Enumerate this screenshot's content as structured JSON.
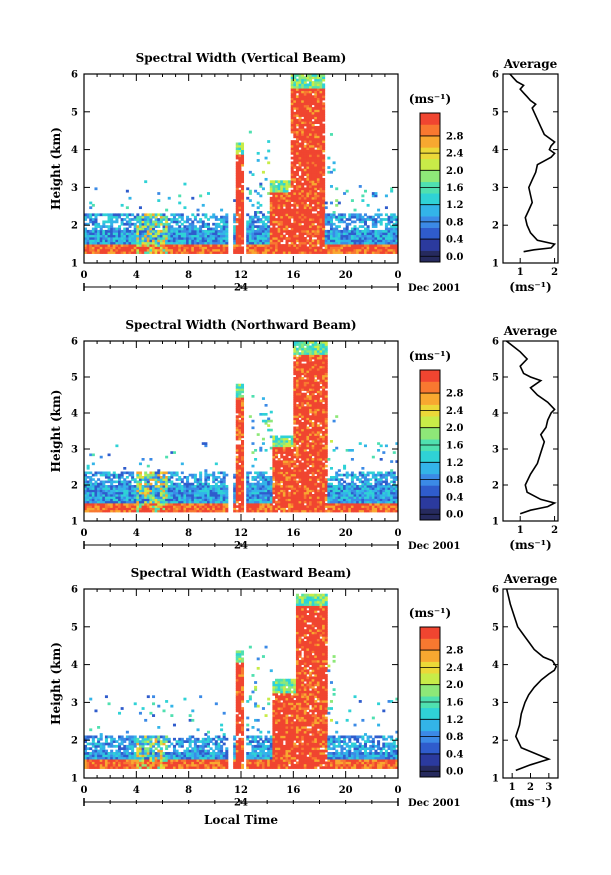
{
  "chart_data": [
    {
      "type": "heatmap",
      "title": "Spectral Width (Vertical Beam)",
      "ylabel": "Height (km)",
      "ylim": [
        1,
        6
      ],
      "yticks": [
        "1",
        "2",
        "3",
        "4",
        "5",
        "6"
      ],
      "xlim": [
        0,
        24
      ],
      "xticks": [
        "0",
        "4",
        "8",
        "12",
        "16",
        "20",
        "0"
      ],
      "date_tick": "24",
      "date_label": "Dec 2001",
      "colorbar": {
        "unit": "(ms⁻¹)",
        "ticks": [
          "0.0",
          "0.4",
          "0.8",
          "1.2",
          "1.6",
          "2.0",
          "2.4",
          "2.8"
        ],
        "colors": [
          "#262a5e",
          "#2b3a9e",
          "#2f5ccc",
          "#3b8ae6",
          "#33b4e8",
          "#2fd2d6",
          "#4fe0b0",
          "#8ee878",
          "#c8ec48",
          "#ecd838",
          "#f8a830",
          "#f87830",
          "#f04530"
        ]
      },
      "profile": {
        "title": "Average",
        "xlabel": "(ms⁻¹)",
        "xlim": [
          0.5,
          2.1
        ],
        "xticks": [
          "1",
          "2"
        ],
        "xtick_values": [
          1,
          2
        ],
        "x": [
          1.1,
          1.4,
          1.9,
          2.0,
          1.5,
          1.3,
          1.2,
          1.15,
          1.25,
          1.35,
          1.3,
          1.25,
          1.35,
          1.45,
          1.5,
          1.6,
          1.7,
          1.8,
          1.9,
          2.0,
          1.85,
          1.9,
          2.0,
          1.7,
          1.6,
          1.5,
          1.4,
          1.35,
          1.45,
          1.3,
          1.2,
          1.1,
          1.0,
          1.1,
          0.9,
          0.8,
          0.7
        ],
        "y": [
          1.3,
          1.35,
          1.4,
          1.5,
          1.6,
          1.8,
          2.0,
          2.2,
          2.4,
          2.6,
          2.8,
          3.0,
          3.2,
          3.4,
          3.6,
          3.65,
          3.7,
          3.75,
          3.8,
          3.9,
          4.0,
          4.1,
          4.2,
          4.4,
          4.6,
          4.8,
          5.0,
          5.1,
          5.2,
          5.3,
          5.4,
          5.5,
          5.6,
          5.7,
          5.8,
          5.9,
          6.0
        ]
      },
      "field": {
        "background": "none",
        "boundary_layer_top_km": 2.3,
        "strong_echo_columns": [
          {
            "t_start": 11.6,
            "t_end": 12.2,
            "h_top": 4.2
          },
          {
            "t_start": 14.2,
            "t_end": 15.8,
            "h_top": 3.2
          },
          {
            "t_start": 15.8,
            "t_end": 18.4,
            "h_top": 6.0
          }
        ]
      }
    },
    {
      "type": "heatmap",
      "title": "Spectral Width (Northward Beam)",
      "ylabel": "Height (km)",
      "ylim": [
        1,
        6
      ],
      "yticks": [
        "1",
        "2",
        "3",
        "4",
        "5",
        "6"
      ],
      "xlim": [
        0,
        24
      ],
      "xticks": [
        "0",
        "4",
        "8",
        "12",
        "16",
        "20",
        "0"
      ],
      "date_tick": "24",
      "date_label": "Dec 2001",
      "colorbar": {
        "unit": "(ms⁻¹)",
        "ticks": [
          "0.0",
          "0.4",
          "0.8",
          "1.2",
          "1.6",
          "2.0",
          "2.4",
          "2.8"
        ],
        "colors": [
          "#262a5e",
          "#2b3a9e",
          "#2f5ccc",
          "#3b8ae6",
          "#33b4e8",
          "#2fd2d6",
          "#4fe0b0",
          "#8ee878",
          "#c8ec48",
          "#ecd838",
          "#f8a830",
          "#f87830",
          "#f04530"
        ]
      },
      "profile": {
        "title": "Average",
        "xlabel": "(ms⁻¹)",
        "xlim": [
          0.5,
          2.1
        ],
        "xticks": [
          "1",
          "2"
        ],
        "xtick_values": [
          1,
          2
        ],
        "x": [
          1.0,
          1.3,
          1.8,
          2.0,
          1.6,
          1.2,
          1.15,
          1.3,
          1.5,
          1.6,
          1.7,
          1.6,
          1.75,
          1.8,
          1.9,
          2.0,
          1.8,
          1.5,
          1.3,
          1.6,
          1.3,
          1.1,
          1.0,
          1.2,
          1.0,
          0.8,
          0.6
        ],
        "y": [
          1.2,
          1.3,
          1.4,
          1.5,
          1.6,
          1.8,
          2.0,
          2.3,
          2.6,
          2.9,
          3.2,
          3.4,
          3.6,
          3.8,
          4.0,
          4.1,
          4.3,
          4.5,
          4.7,
          4.9,
          5.0,
          5.1,
          5.3,
          5.5,
          5.7,
          5.85,
          6.0
        ]
      },
      "field": {
        "background": "none",
        "boundary_layer_top_km": 2.4,
        "strong_echo_columns": [
          {
            "t_start": 11.6,
            "t_end": 12.2,
            "h_top": 4.8
          },
          {
            "t_start": 14.4,
            "t_end": 16.0,
            "h_top": 3.4
          },
          {
            "t_start": 16.0,
            "t_end": 18.5,
            "h_top": 6.0
          }
        ]
      }
    },
    {
      "type": "heatmap",
      "title": "Spectral Width (Eastward Beam)",
      "ylabel": "Height (km)",
      "xlabel": "Local Time",
      "ylim": [
        1,
        6
      ],
      "yticks": [
        "1",
        "2",
        "3",
        "4",
        "5",
        "6"
      ],
      "xlim": [
        0,
        24
      ],
      "xticks": [
        "0",
        "4",
        "8",
        "12",
        "16",
        "20",
        "0"
      ],
      "date_tick": "24",
      "date_label": "Dec 2001",
      "colorbar": {
        "unit": "(ms⁻¹)",
        "ticks": [
          "0.0",
          "0.4",
          "0.8",
          "1.2",
          "1.6",
          "2.0",
          "2.4",
          "2.8"
        ],
        "colors": [
          "#262a5e",
          "#2b3a9e",
          "#2f5ccc",
          "#3b8ae6",
          "#33b4e8",
          "#2fd2d6",
          "#4fe0b0",
          "#8ee878",
          "#c8ec48",
          "#ecd838",
          "#f8a830",
          "#f87830",
          "#f04530"
        ]
      },
      "profile": {
        "title": "Average",
        "xlabel": "(ms⁻¹)",
        "xlim": [
          0.5,
          3.5
        ],
        "xticks": [
          "1",
          "2",
          "3"
        ],
        "xtick_values": [
          1,
          2,
          3
        ],
        "x": [
          1.2,
          2.0,
          3.0,
          1.5,
          1.2,
          1.4,
          1.5,
          1.7,
          1.9,
          2.2,
          2.6,
          3.0,
          3.3,
          3.4,
          3.2,
          2.7,
          2.2,
          1.9,
          1.6,
          1.3,
          1.1,
          0.9,
          0.7
        ],
        "y": [
          1.2,
          1.35,
          1.5,
          1.8,
          2.1,
          2.4,
          2.7,
          3.0,
          3.2,
          3.4,
          3.6,
          3.75,
          3.85,
          3.95,
          4.1,
          4.2,
          4.4,
          4.6,
          4.8,
          5.0,
          5.3,
          5.6,
          6.0
        ]
      },
      "field": {
        "background": "none",
        "boundary_layer_top_km": 2.1,
        "strong_echo_columns": [
          {
            "t_start": 11.6,
            "t_end": 12.2,
            "h_top": 4.4
          },
          {
            "t_start": 14.4,
            "t_end": 16.2,
            "h_top": 3.6
          },
          {
            "t_start": 16.2,
            "t_end": 18.6,
            "h_top": 5.9
          }
        ]
      }
    }
  ]
}
